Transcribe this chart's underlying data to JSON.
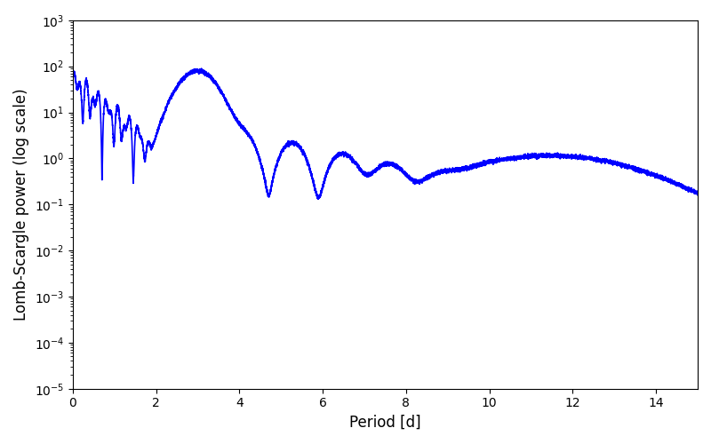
{
  "title": "",
  "xlabel": "Period [d]",
  "ylabel": "Lomb-Scargle power (log scale)",
  "xlim": [
    0,
    15
  ],
  "ylim": [
    1e-05,
    1000.0
  ],
  "line_color": "blue",
  "line_width": 1.2,
  "figsize": [
    8.0,
    5.0
  ],
  "dpi": 100,
  "xticks": [
    0,
    2,
    4,
    6,
    8,
    10,
    12,
    14
  ],
  "background_color": "#ffffff"
}
